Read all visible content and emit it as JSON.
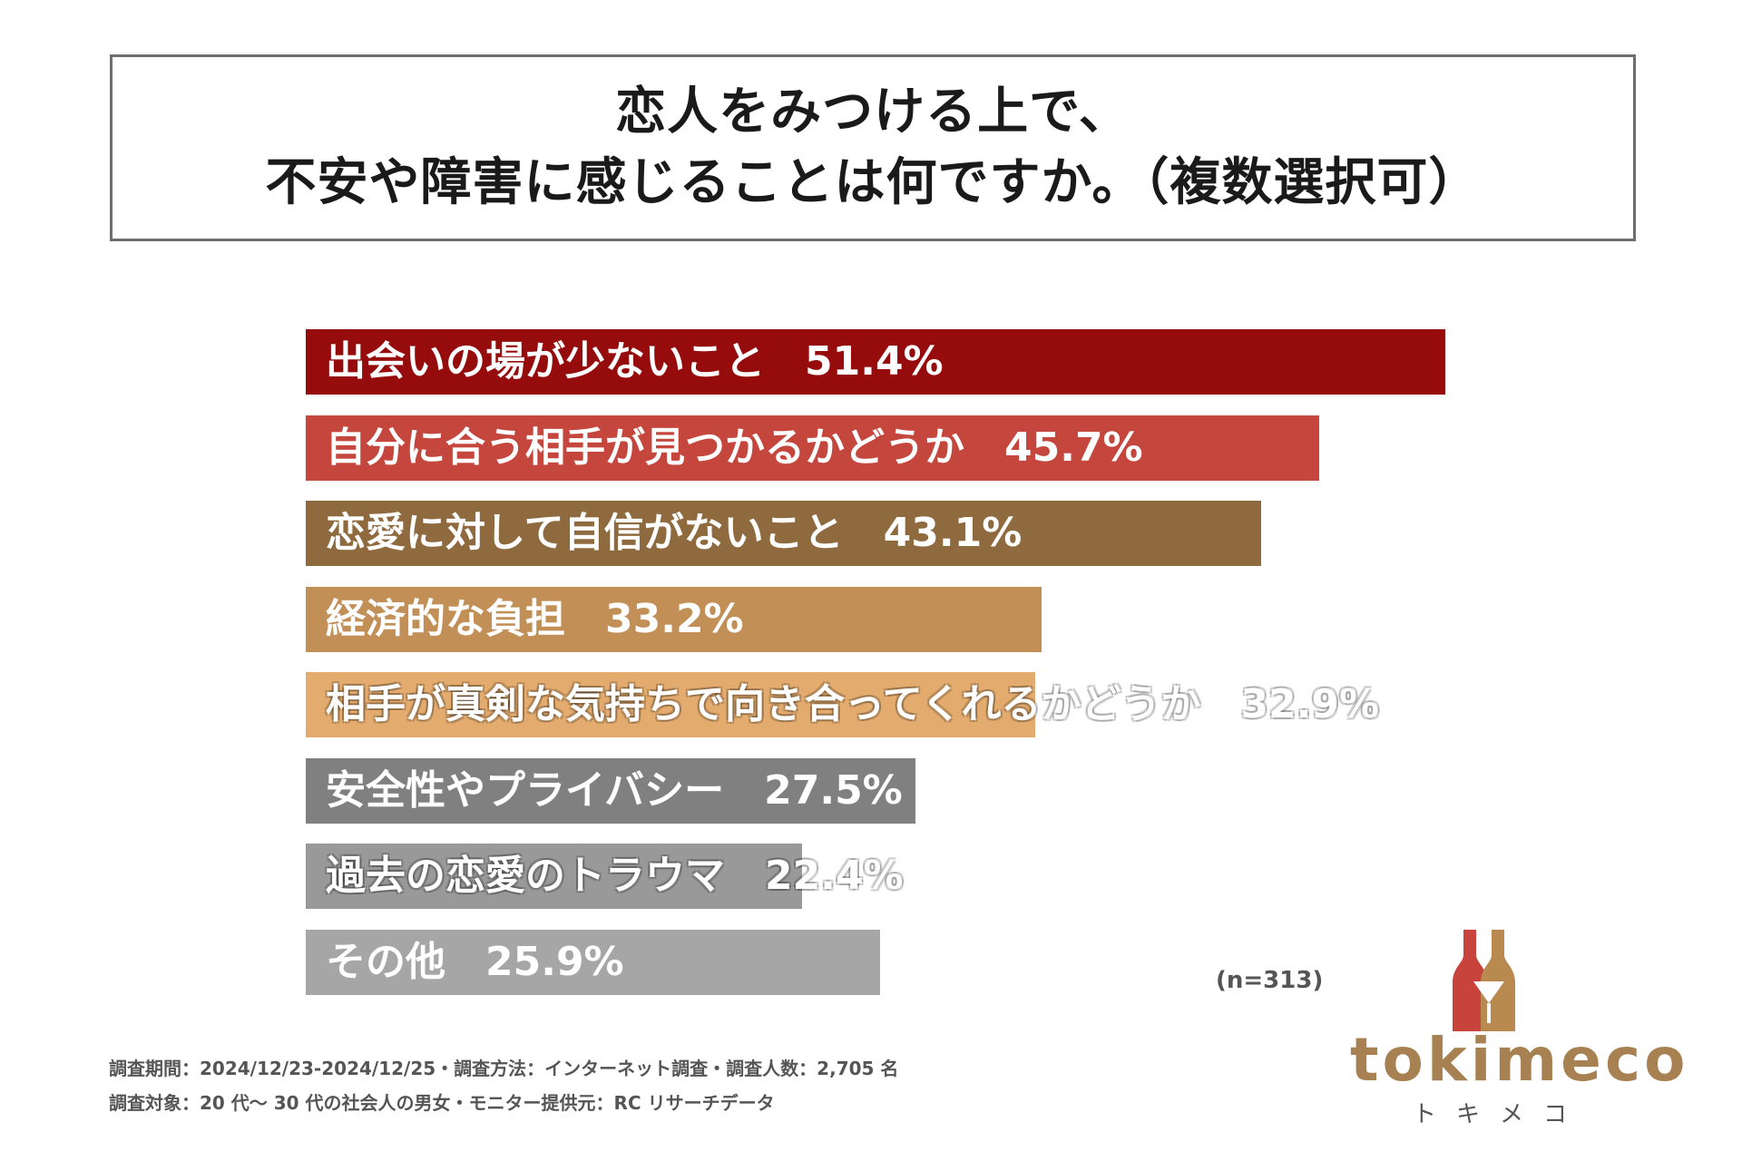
{
  "title": {
    "line1": "恋人をみつける上で、",
    "line2": "不安や障害に感じることは何ですか。（複数選択可）"
  },
  "chart_data": {
    "type": "bar",
    "orientation": "horizontal",
    "categories": [
      "出会いの場が少ないこと",
      "自分に合う相手が見つかるかどうか",
      "恋愛に対して自信がないこと",
      "経済的な負担",
      "相手が真剣な気持ちで向き合ってくれるかどうか",
      "安全性やプライバシー",
      "過去の恋愛のトラウマ",
      "その他"
    ],
    "values": [
      51.4,
      45.7,
      43.1,
      33.2,
      32.9,
      27.5,
      22.4,
      25.9
    ],
    "value_labels": [
      "51.4%",
      "45.7%",
      "43.1%",
      "33.2%",
      "32.9%",
      "27.5%",
      "22.4%",
      "25.9%"
    ],
    "colors": [
      "#960b0b",
      "#c4463d",
      "#8f6a3f",
      "#c28f57",
      "#e3ab6e",
      "#808080",
      "#999999",
      "#a6a6a6"
    ],
    "xlim": [
      0,
      51.4
    ],
    "grid": false,
    "legend": "none"
  },
  "sample_note": "(n=313)",
  "footer": {
    "line1": "調査期間：2024/12/23-2024/12/25・調査方法：インターネット調査・調査人数：2,705 名",
    "line2": "調査対象：20 代〜 30 代の社会人の男女・モニター提供元：RC リサーチデータ"
  },
  "logo": {
    "word": "tokimeco",
    "kana": "トキメコ",
    "colors": {
      "left_bottle": "#c8433b",
      "right_bottle": "#b88a4f"
    }
  }
}
